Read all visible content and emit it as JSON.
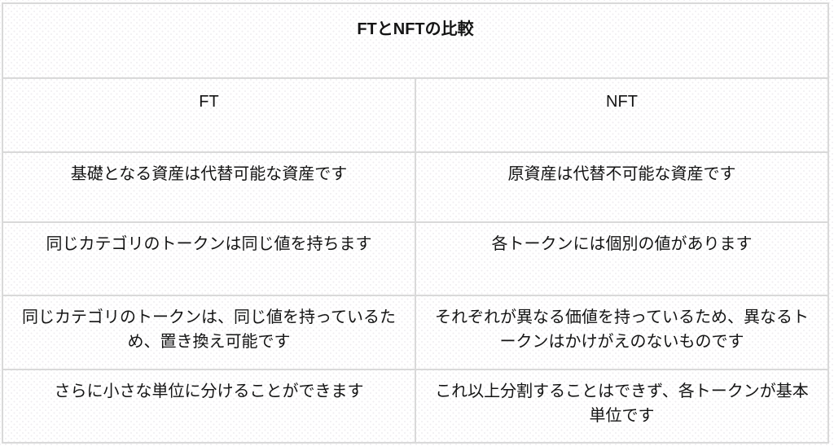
{
  "table": {
    "title": "FTとNFTの比較",
    "columns": [
      "FT",
      "NFT"
    ],
    "rows": [
      {
        "ft": "基礎となる資産は代替可能な資産です",
        "nft": "原資産は代替不可能な資産です"
      },
      {
        "ft": "同じカテゴリのトークンは同じ値を持ちます",
        "nft": "各トークンには個別の値があります"
      },
      {
        "ft": "同じカテゴリのトークンは、同じ値を持っているため、置き換え可能です",
        "nft": "それぞれが異なる価値を持っているため、異なるトークンはかけがえのないものです"
      },
      {
        "ft": "さらに小さな単位に分けることができます",
        "nft": "これ以上分割することはできず、各トークンが基本単位です"
      }
    ],
    "colors": {
      "border": "#d9d9d9",
      "text": "#141414",
      "background": "#ffffff"
    }
  }
}
